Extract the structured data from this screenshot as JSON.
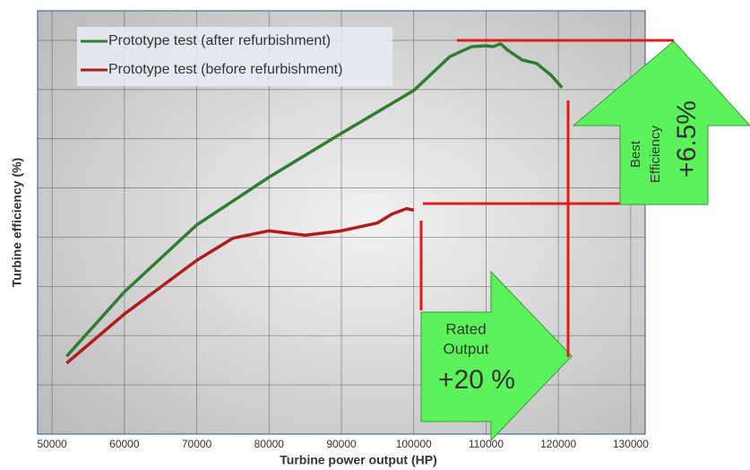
{
  "chart_data": {
    "type": "line",
    "x_label": "Turbine power output (HP)",
    "y_label": "Turbine efficiency (%)",
    "xlim": [
      48000,
      132000
    ],
    "xticks": [
      50000,
      60000,
      70000,
      80000,
      90000,
      100000,
      110000,
      120000,
      130000
    ],
    "ylim": [
      0,
      8.6
    ],
    "yticks": [
      1,
      2,
      3,
      4,
      5,
      6,
      7,
      8
    ],
    "grid": true,
    "legend": "upper left",
    "series": [
      {
        "name": "Prototype test (after refurbishment)",
        "color": "#2e7d32",
        "x": [
          52000,
          60000,
          70000,
          80000,
          90000,
          100000,
          105000,
          108000,
          110000,
          111000,
          112000,
          113000,
          115000,
          117000,
          119000,
          120500
        ],
        "values": [
          1.58,
          2.89,
          4.25,
          5.22,
          6.11,
          6.98,
          7.67,
          7.87,
          7.89,
          7.87,
          7.93,
          7.8,
          7.6,
          7.53,
          7.29,
          7.04
        ]
      },
      {
        "name": "Prototype test (before refurbishment)",
        "color": "#b01c1c",
        "x": [
          52000,
          60000,
          70000,
          75000,
          80000,
          85000,
          90000,
          95000,
          97000,
          99000,
          100000
        ],
        "values": [
          1.44,
          2.44,
          3.53,
          3.98,
          4.13,
          4.04,
          4.13,
          4.29,
          4.47,
          4.58,
          4.55
        ]
      }
    ],
    "annotations": {
      "rated": [
        "Rated",
        "Output",
        "+20 %"
      ],
      "best": [
        "Best",
        "Efficiency",
        "+6.5%"
      ]
    }
  }
}
